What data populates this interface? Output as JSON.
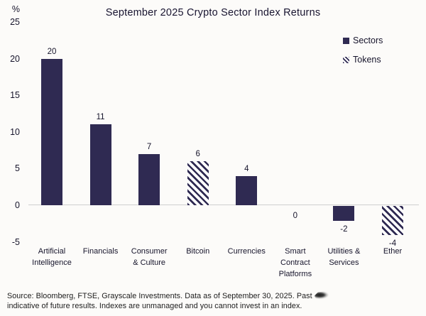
{
  "title": "September 2025 Crypto Sector Index Returns",
  "y_axis_unit": "%",
  "legend": [
    {
      "label": "Sectors",
      "pattern": "solid"
    },
    {
      "label": "Tokens",
      "pattern": "hatched"
    }
  ],
  "footer": {
    "line1": "Source: Bloomberg, FTSE, Grayscale Investments. Data as of September 30, 2025. Past",
    "line1_note": "smudged-out text after 'Past'",
    "line2": "indicative of future results. Indexes are unmanaged and you cannot invest in an index."
  },
  "colors": {
    "bar": "#2f2a52",
    "hatch_background": "#ffffff",
    "axis_line": "#cfcfcf",
    "text": "#16142b",
    "background": "#fcfbf9"
  },
  "chart_data": {
    "type": "bar",
    "title": "September 2025 Crypto Sector Index Returns",
    "xlabel": "",
    "ylabel": "%",
    "ylim": [
      -5,
      25
    ],
    "yticks": [
      25,
      20,
      15,
      10,
      5,
      0,
      -5
    ],
    "grid": false,
    "legend_position": "top-right",
    "categories": [
      "Artificial Intelligence",
      "Financials",
      "Consumer & Culture",
      "Bitcoin",
      "Currencies",
      "Smart Contract Platforms",
      "Utilities & Services",
      "Ether"
    ],
    "category_label_lines": [
      "Artificial\nIntelligence",
      "Financials",
      "Consumer\n& Culture",
      "Bitcoin",
      "Currencies",
      "Smart\nContract\nPlatforms",
      "Utilities &\nServices",
      "Ether"
    ],
    "series": [
      {
        "name": "Sectors",
        "pattern": "solid",
        "values": [
          20,
          11,
          7,
          null,
          4,
          0,
          -2,
          null
        ]
      },
      {
        "name": "Tokens",
        "pattern": "hatched",
        "values": [
          null,
          null,
          null,
          6,
          null,
          null,
          null,
          -4
        ]
      }
    ],
    "value_labels": [
      "20",
      "11",
      "7",
      "6",
      "4",
      "0",
      "-2",
      "-4"
    ]
  }
}
